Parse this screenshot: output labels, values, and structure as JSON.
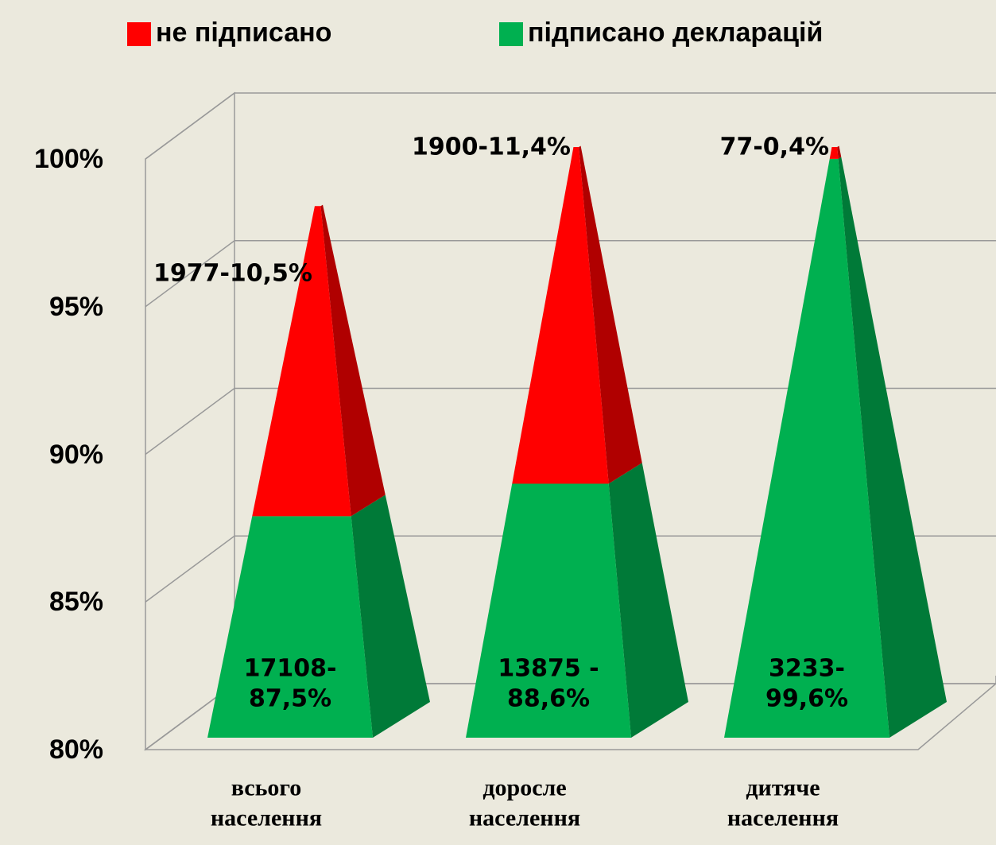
{
  "chart_data": {
    "type": "pyramid",
    "categories": [
      "всього населення",
      "доросле населення",
      "дитяче населення"
    ],
    "series": [
      {
        "name": "підписано декларацій",
        "color": "#00b050",
        "side_color": "#007a38",
        "values": [
          87.5,
          88.6,
          99.6
        ],
        "value_labels": [
          "17108-87,5%",
          "13875 - 88,6%",
          "3233-99,6%"
        ]
      },
      {
        "name": "не підписано",
        "color": "#ff0000",
        "side_color": "#b00000",
        "values": [
          10.5,
          11.4,
          0.4
        ],
        "value_labels": [
          "1977-10,5%",
          "1900-11,4%",
          "77-0,4%"
        ]
      }
    ],
    "ylim": [
      80,
      100
    ],
    "yticks": [
      {
        "value": 80,
        "label": "80%"
      },
      {
        "value": 85,
        "label": "85%"
      },
      {
        "value": 90,
        "label": "90%"
      },
      {
        "value": 95,
        "label": "95%"
      },
      {
        "value": 100,
        "label": "100%"
      }
    ],
    "grid": true,
    "legend": "top"
  }
}
